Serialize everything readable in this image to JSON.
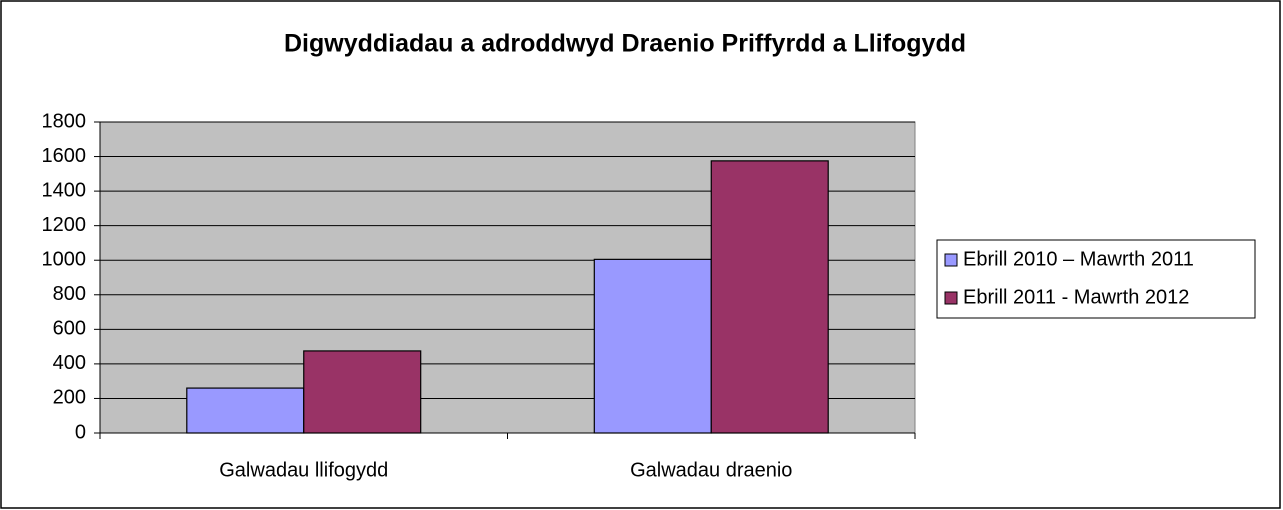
{
  "chart_data": {
    "type": "bar",
    "title": "Digwyddiadau a adroddwyd Draenio Priffyrdd a Llifogydd",
    "categories": [
      "Galwadau llifogydd",
      "Galwadau draenio"
    ],
    "series": [
      {
        "name": "Ebrill 2010 – Mawrth 2011",
        "color": "#9999ff",
        "values": [
          260,
          1005
        ]
      },
      {
        "name": "Ebrill 2011 - Mawrth 2012",
        "color": "#993366",
        "values": [
          475,
          1575
        ]
      }
    ],
    "ylim": [
      0,
      1800
    ],
    "yticks": [
      0,
      200,
      400,
      600,
      800,
      1000,
      1200,
      1400,
      1600,
      1800
    ],
    "grid": true,
    "legend": "right"
  }
}
